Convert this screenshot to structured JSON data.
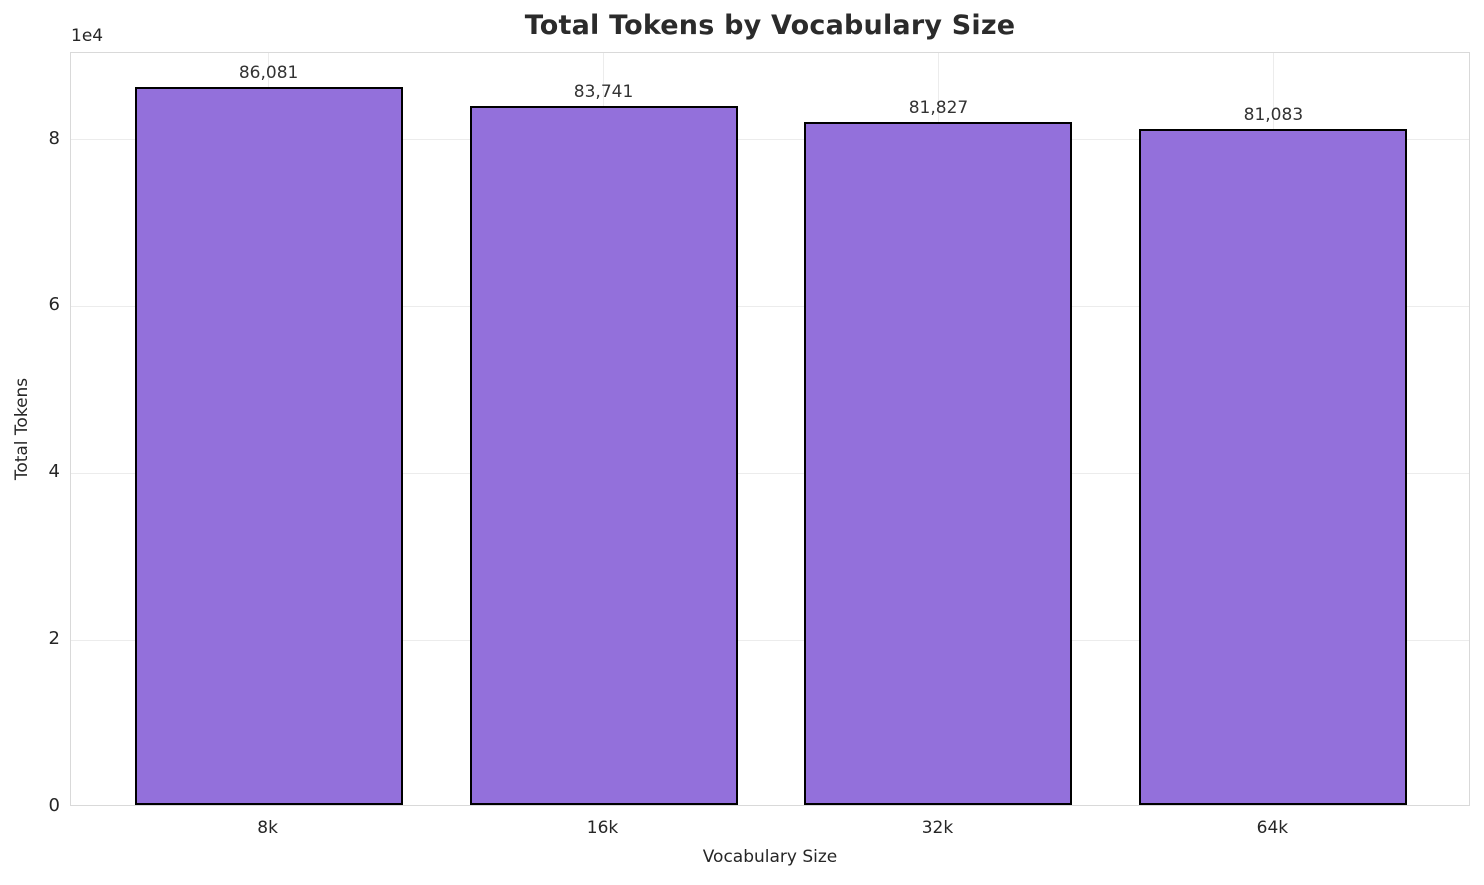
{
  "chart_data": {
    "type": "bar",
    "title": "Total Tokens by Vocabulary Size",
    "xlabel": "Vocabulary Size",
    "ylabel": "Total Tokens",
    "offset_text": "1e4",
    "categories": [
      "8k",
      "16k",
      "32k",
      "64k"
    ],
    "values": [
      86081,
      83741,
      81827,
      81083
    ],
    "value_labels": [
      "86,081",
      "83,741",
      "81,827",
      "81,083"
    ],
    "ylim": [
      0,
      90385
    ],
    "xlim": [
      -0.59,
      3.59
    ],
    "bar_width": 0.8,
    "yticks": [
      0,
      20000,
      40000,
      60000,
      80000
    ],
    "ytick_labels": [
      "0",
      "2",
      "4",
      "6",
      "8"
    ],
    "grid": true,
    "legend_position": "none",
    "colors": {
      "bar_fill": "#9370DB",
      "bar_edge": "#000000",
      "grid": "#ececec",
      "spine": "#d9d9d9",
      "text": "#262626",
      "title": "#2b2b2b",
      "background": "#ffffff"
    }
  }
}
